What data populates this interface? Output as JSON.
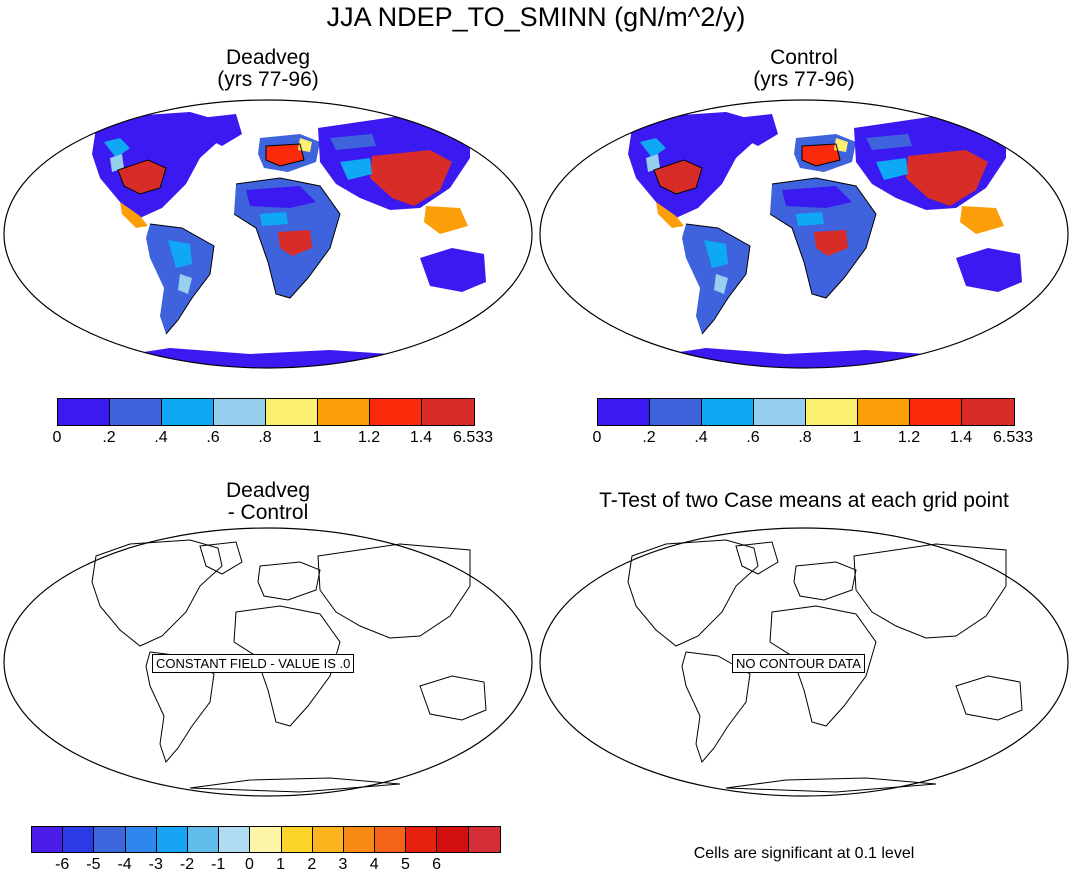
{
  "title": "JJA NDEP_TO_SMINN (gN/m^2/y)",
  "panels": {
    "top_left": {
      "title": "Deadveg\n(yrs 77-96)"
    },
    "top_right": {
      "title": "Control\n(yrs 77-96)"
    },
    "bottom_left": {
      "title": "Deadveg\n- Control",
      "message": "CONSTANT FIELD - VALUE IS .0"
    },
    "bottom_right": {
      "title": "T-Test of two Case means at each grid point",
      "message": "NO CONTOUR DATA"
    }
  },
  "colorbar_top": {
    "colors": [
      "#3a1af0",
      "#3f63dd",
      "#0ea8f5",
      "#97cfef",
      "#fbf070",
      "#fb9e0a",
      "#fb2a0a",
      "#d82c28"
    ],
    "labels": [
      "0",
      ".2",
      ".4",
      ".6",
      ".8",
      "1",
      "1.2",
      "1.4",
      "6.533"
    ]
  },
  "colorbar_diff": {
    "colors": [
      "#4a1ee8",
      "#2c3ae6",
      "#3c66dc",
      "#2f86ee",
      "#18a4f5",
      "#5fbceb",
      "#b0dcf2",
      "#fdf6a8",
      "#fdd42a",
      "#fbb31e",
      "#f98a14",
      "#f5621a",
      "#e6200e",
      "#d20e0e",
      "#d42e36"
    ],
    "labels": [
      "-6",
      "-5",
      "-4",
      "-3",
      "-2",
      "-1",
      "0",
      "1",
      "2",
      "3",
      "4",
      "5",
      "6"
    ]
  },
  "significance_note": "Cells are significant at 0.1 level"
}
